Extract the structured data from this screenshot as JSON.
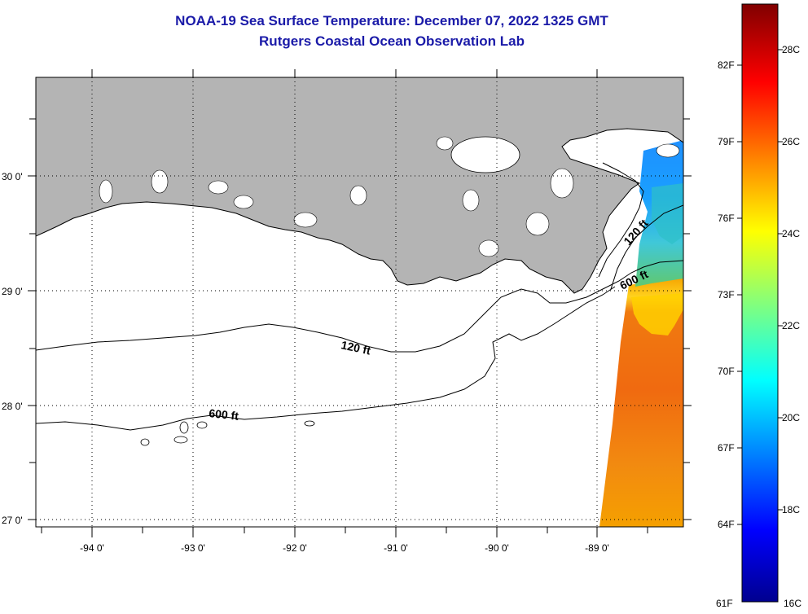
{
  "header": {
    "title": "NOAA-19 Sea Surface Temperature:  December 07, 2022 1325 GMT",
    "subtitle": "Rutgers Coastal Ocean Observation Lab"
  },
  "map": {
    "lon_labels": [
      "-94 0'",
      "-93 0'",
      "-92 0'",
      "-91 0'",
      "-90 0'",
      "-89 0'"
    ],
    "lat_labels": [
      "30 0'",
      "29 0'",
      "28 0'",
      "27 0'"
    ],
    "contours": {
      "c120_west": "120 ft",
      "c600_west": "600 ft",
      "c120_east": "120 ft",
      "c600_east": "600 ft"
    },
    "colors": {
      "land": "#b4b4b4",
      "ocean": "#ffffff",
      "title": "#1a1aa8"
    }
  },
  "colorbar": {
    "f_labels": [
      "82F",
      "79F",
      "76F",
      "73F",
      "70F",
      "67F",
      "64F",
      "61F"
    ],
    "c_labels": [
      "28C",
      "26C",
      "24C",
      "22C",
      "20C",
      "18C",
      "16C"
    ]
  }
}
